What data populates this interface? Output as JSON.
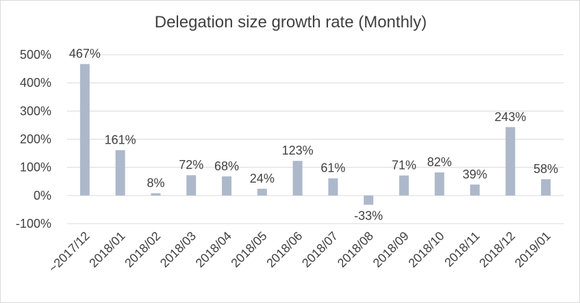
{
  "chart_data": {
    "type": "bar",
    "title": "Delegation size growth rate (Monthly)",
    "xlabel": "",
    "ylabel": "",
    "categories": [
      "~2017/12",
      "2018/01",
      "2018/02",
      "2018/03",
      "2018/04",
      "2018/05",
      "2018/06",
      "2018/07",
      "2018/08",
      "2018/09",
      "2018/10",
      "2018/11",
      "2018/12",
      "2019/01"
    ],
    "values": [
      467,
      161,
      8,
      72,
      68,
      24,
      123,
      61,
      -33,
      71,
      82,
      39,
      243,
      58
    ],
    "value_suffix": "%",
    "ylim": [
      -100,
      500
    ],
    "yticks": [
      -100,
      0,
      100,
      200,
      300,
      400,
      500
    ],
    "ytick_labels": [
      "-100%",
      "0%",
      "100%",
      "200%",
      "300%",
      "400%",
      "500%"
    ],
    "data_labels": [
      "467%",
      "161%",
      "8%",
      "72%",
      "68%",
      "24%",
      "123%",
      "61%",
      "-33%",
      "71%",
      "82%",
      "39%",
      "243%",
      "58%"
    ],
    "grid": true,
    "bar_color": "#adb9ca",
    "grid_color": "#d9d9d9",
    "text_color": "#404040"
  }
}
